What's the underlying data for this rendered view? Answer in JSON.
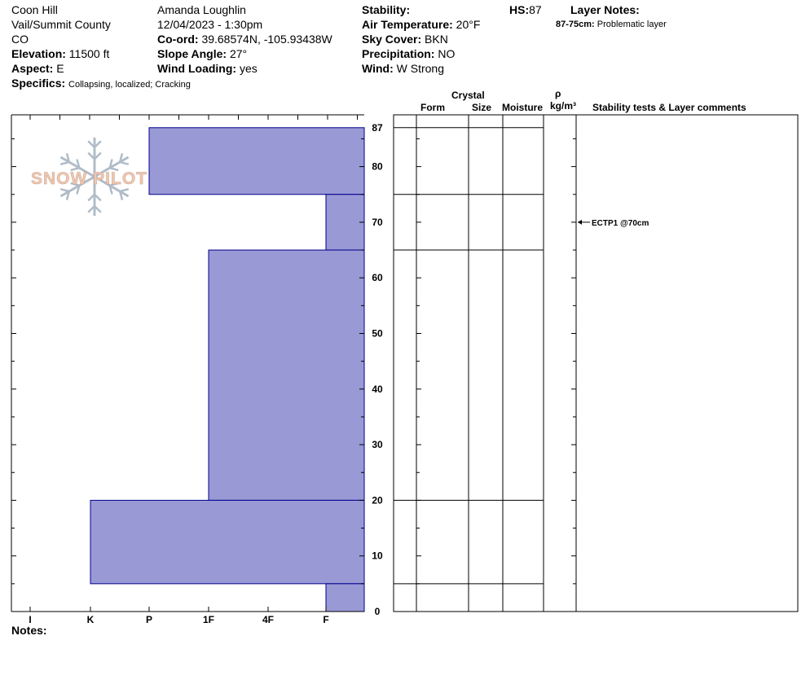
{
  "header": {
    "location": "Coon Hill",
    "region": "Vail/Summit County",
    "state": "CO",
    "elevation_label": "Elevation:",
    "elevation_value": "11500 ft",
    "aspect_label": "Aspect:",
    "aspect_value": "E",
    "specifics_label": "Specifics:",
    "specifics_value": "Collapsing, localized;  Cracking",
    "observer": "Amanda Loughlin",
    "datetime": "12/04/2023 - 1:30pm",
    "coord_label": "Co-ord:",
    "coord_value": "39.68574N, -105.93438W",
    "slope_label": "Slope Angle:",
    "slope_value": "27°",
    "wind_loading_label": "Wind Loading:",
    "wind_loading_value": "yes",
    "stability_label": "Stability:",
    "stability_value": "",
    "air_temp_label": "Air Temperature:",
    "air_temp_value": "20°F",
    "sky_label": "Sky Cover:",
    "sky_value": "BKN",
    "precip_label": "Precipitation:",
    "precip_value": "NO",
    "wind_label": "Wind:",
    "wind_value": "W Strong",
    "hs_label": "HS:",
    "hs_value": "87",
    "layer_notes_label": "Layer Notes:",
    "layer_note_range": "87-75cm:",
    "layer_note_text": "Problematic layer"
  },
  "logo": {
    "text": "SNOW PILOT"
  },
  "notes_label": "Notes:",
  "table_headers": {
    "crystal": "Crystal",
    "form": "Form",
    "size": "Size",
    "moisture": "Moisture",
    "rho": "ρ",
    "density_unit": "kg/m³",
    "comments": "Stability tests & Layer comments"
  },
  "colors": {
    "hardness_fill": "#9999d6",
    "hardness_stroke": "#00008b",
    "logo": "#f0c8b0",
    "snowflake": "#b0bcc8"
  },
  "chart_data": {
    "type": "bar",
    "orientation": "horizontal",
    "y_axis": {
      "label": "",
      "range": [
        0,
        87
      ],
      "ticks": [
        0,
        10,
        20,
        30,
        40,
        50,
        60,
        70,
        80,
        87
      ]
    },
    "x_axis": {
      "categories": [
        "I",
        "K",
        "P",
        "1F",
        "4F",
        "F"
      ],
      "note": "hand hardness; bars extend from right (F) toward left"
    },
    "layers": [
      {
        "bottom": 75,
        "top": 87,
        "hardness": "P"
      },
      {
        "bottom": 65,
        "top": 75,
        "hardness": "F+"
      },
      {
        "bottom": 20,
        "top": 65,
        "hardness": "1F"
      },
      {
        "bottom": 5,
        "top": 20,
        "hardness": "K"
      },
      {
        "bottom": 0,
        "top": 5,
        "hardness": "F+"
      }
    ],
    "boundaries": [
      87,
      75,
      65,
      20,
      5
    ],
    "tests": [
      {
        "depth": 70,
        "label": "ECTP1 @70cm"
      }
    ]
  }
}
